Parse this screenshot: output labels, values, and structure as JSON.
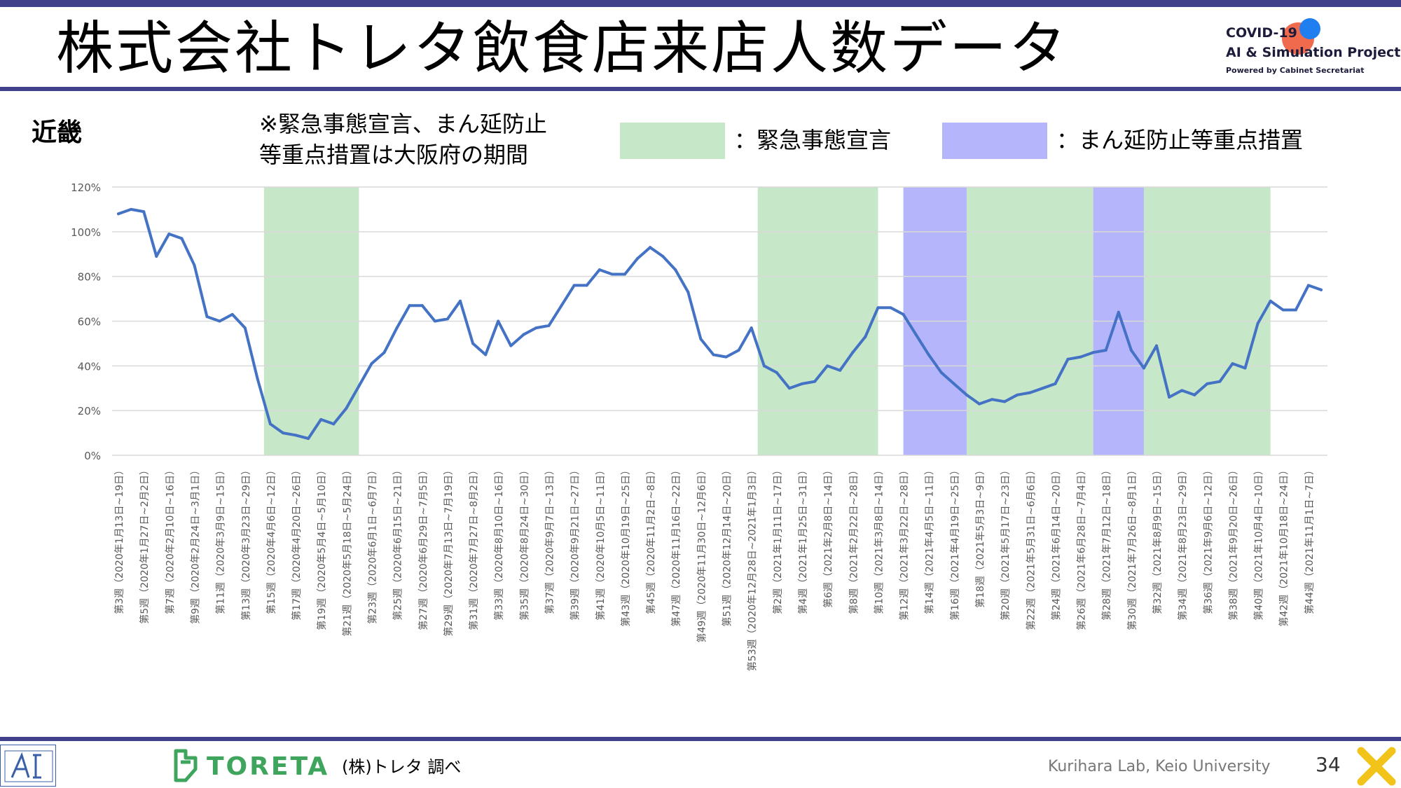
{
  "header": {
    "title": "株式会社トレタ飲食店来店人数データ",
    "logo_line1": "COVID-19",
    "logo_line2": "AI & Simulation Project",
    "logo_line3": "Powered by Cabinet Secretariat"
  },
  "region_label": "近畿",
  "note_lines": [
    "※緊急事態宣言、まん延防止",
    "等重点措置は大阪府の期間"
  ],
  "legend": {
    "emergency_label": "：緊急事態宣言",
    "emergency_color": "#c6e7c8",
    "priority_label": "：まん延防止等重点措置",
    "priority_color": "#b5b5fb"
  },
  "footer": {
    "brand": "TORETA",
    "source": "(株)トレタ 調べ",
    "lab": "Kurihara Lab, Keio University",
    "page": "34"
  },
  "chart_data": {
    "type": "line",
    "ylim": [
      0,
      120
    ],
    "y_ticks": [
      "0%",
      "20%",
      "40%",
      "60%",
      "80%",
      "100%",
      "120%"
    ],
    "line_color": "#4472c4",
    "grid": true,
    "x_tick_labels": [
      "第3週（2020年1月13日~19日）",
      "第5週（2020年1月27日~2月2日）",
      "第7週（2020年2月10日~16日）",
      "第9週（2020年2月24日~3月1日）",
      "第11週（2020年3月9日~15日）",
      "第13週（2020年3月23日~29日）",
      "第15週（2020年4月6日~12日）",
      "第17週（2020年4月20日~26日）",
      "第19週（2020年5月4日~5月10日）",
      "第21週（2020年5月18日~5月24日）",
      "第23週（2020年6月1日~6月7日）",
      "第25週（2020年6月15日~21日）",
      "第27週（2020年6月29日~7月5日）",
      "第29週（2020年7月13日~7月19日）",
      "第31週（2020年7月27日~8月2日）",
      "第33週（2020年8月10日~16日）",
      "第35週（2020年8月24日~30日）",
      "第37週（2020年9月7日~13日）",
      "第39週（2020年9月21日~27日）",
      "第41週（2020年10月5日~11日）",
      "第43週（2020年10月19日~25日）",
      "第45週（2020年11月2日~8日）",
      "第47週（2020年11月16日~22日）",
      "第49週（2020年11月30日~12月6日）",
      "第51週（2020年12月14日~20日）",
      "第53週（2020年12月28日~2021年1月3日）",
      "第2週（2021年1月11日~17日）",
      "第4週（2021年1月25日~31日）",
      "第6週（2021年2月8日~14日）",
      "第8週（2021年2月22日~28日）",
      "第10週（2021年3月8日~14日）",
      "第12週（2021年3月22日~28日）",
      "第14週（2021年4月5日~11日）",
      "第16週（2021年4月19日~25日）",
      "第18週（2021年5月3日~9日）",
      "第20週（2021年5月17日~23日）",
      "第22週（2021年5月31日~6月6日）",
      "第24週（2021年6月14日~20日）",
      "第26週（2021年6月28日~7月4日）",
      "第28週（2021年7月12日~18日）",
      "第30週（2021年7月26日~8月1日）",
      "第32週（2021年8月9日~15日）",
      "第34週（2021年8月23日~29日）",
      "第36週（2021年9月6日~12日）",
      "第38週（2021年9月20日~26日）",
      "第40週（2021年10月4日~10日）",
      "第42週（2021年10月18日~24日）",
      "第44週（2021年11月1日~7日）"
    ],
    "values": [
      108,
      110,
      109,
      89,
      99,
      97,
      85,
      62,
      60,
      63,
      57,
      34,
      14,
      10,
      9,
      7.5,
      16,
      14,
      21,
      31,
      41,
      46,
      57,
      67,
      67,
      60,
      61,
      69,
      50,
      45,
      60,
      49,
      54,
      57,
      58,
      67,
      76,
      76,
      83,
      81,
      81,
      88,
      93,
      89,
      83,
      73,
      52,
      45,
      44,
      47,
      57,
      40,
      37,
      30,
      32,
      33,
      40,
      38,
      46,
      53,
      66,
      66,
      63,
      54,
      45,
      37,
      32,
      27,
      23,
      25,
      24,
      27,
      28,
      30,
      32,
      43,
      44,
      46,
      47,
      64,
      47,
      39,
      49,
      26,
      29,
      27,
      32,
      33,
      41,
      39,
      59,
      69,
      65,
      65,
      76,
      74
    ],
    "emergency_periods": [
      [
        12,
        19.5
      ],
      [
        51,
        60.5
      ],
      [
        67.5,
        77.5
      ],
      [
        81.5,
        91.5
      ]
    ],
    "priority_periods": [
      [
        62.5,
        67.5
      ],
      [
        77.5,
        81.5
      ]
    ]
  }
}
